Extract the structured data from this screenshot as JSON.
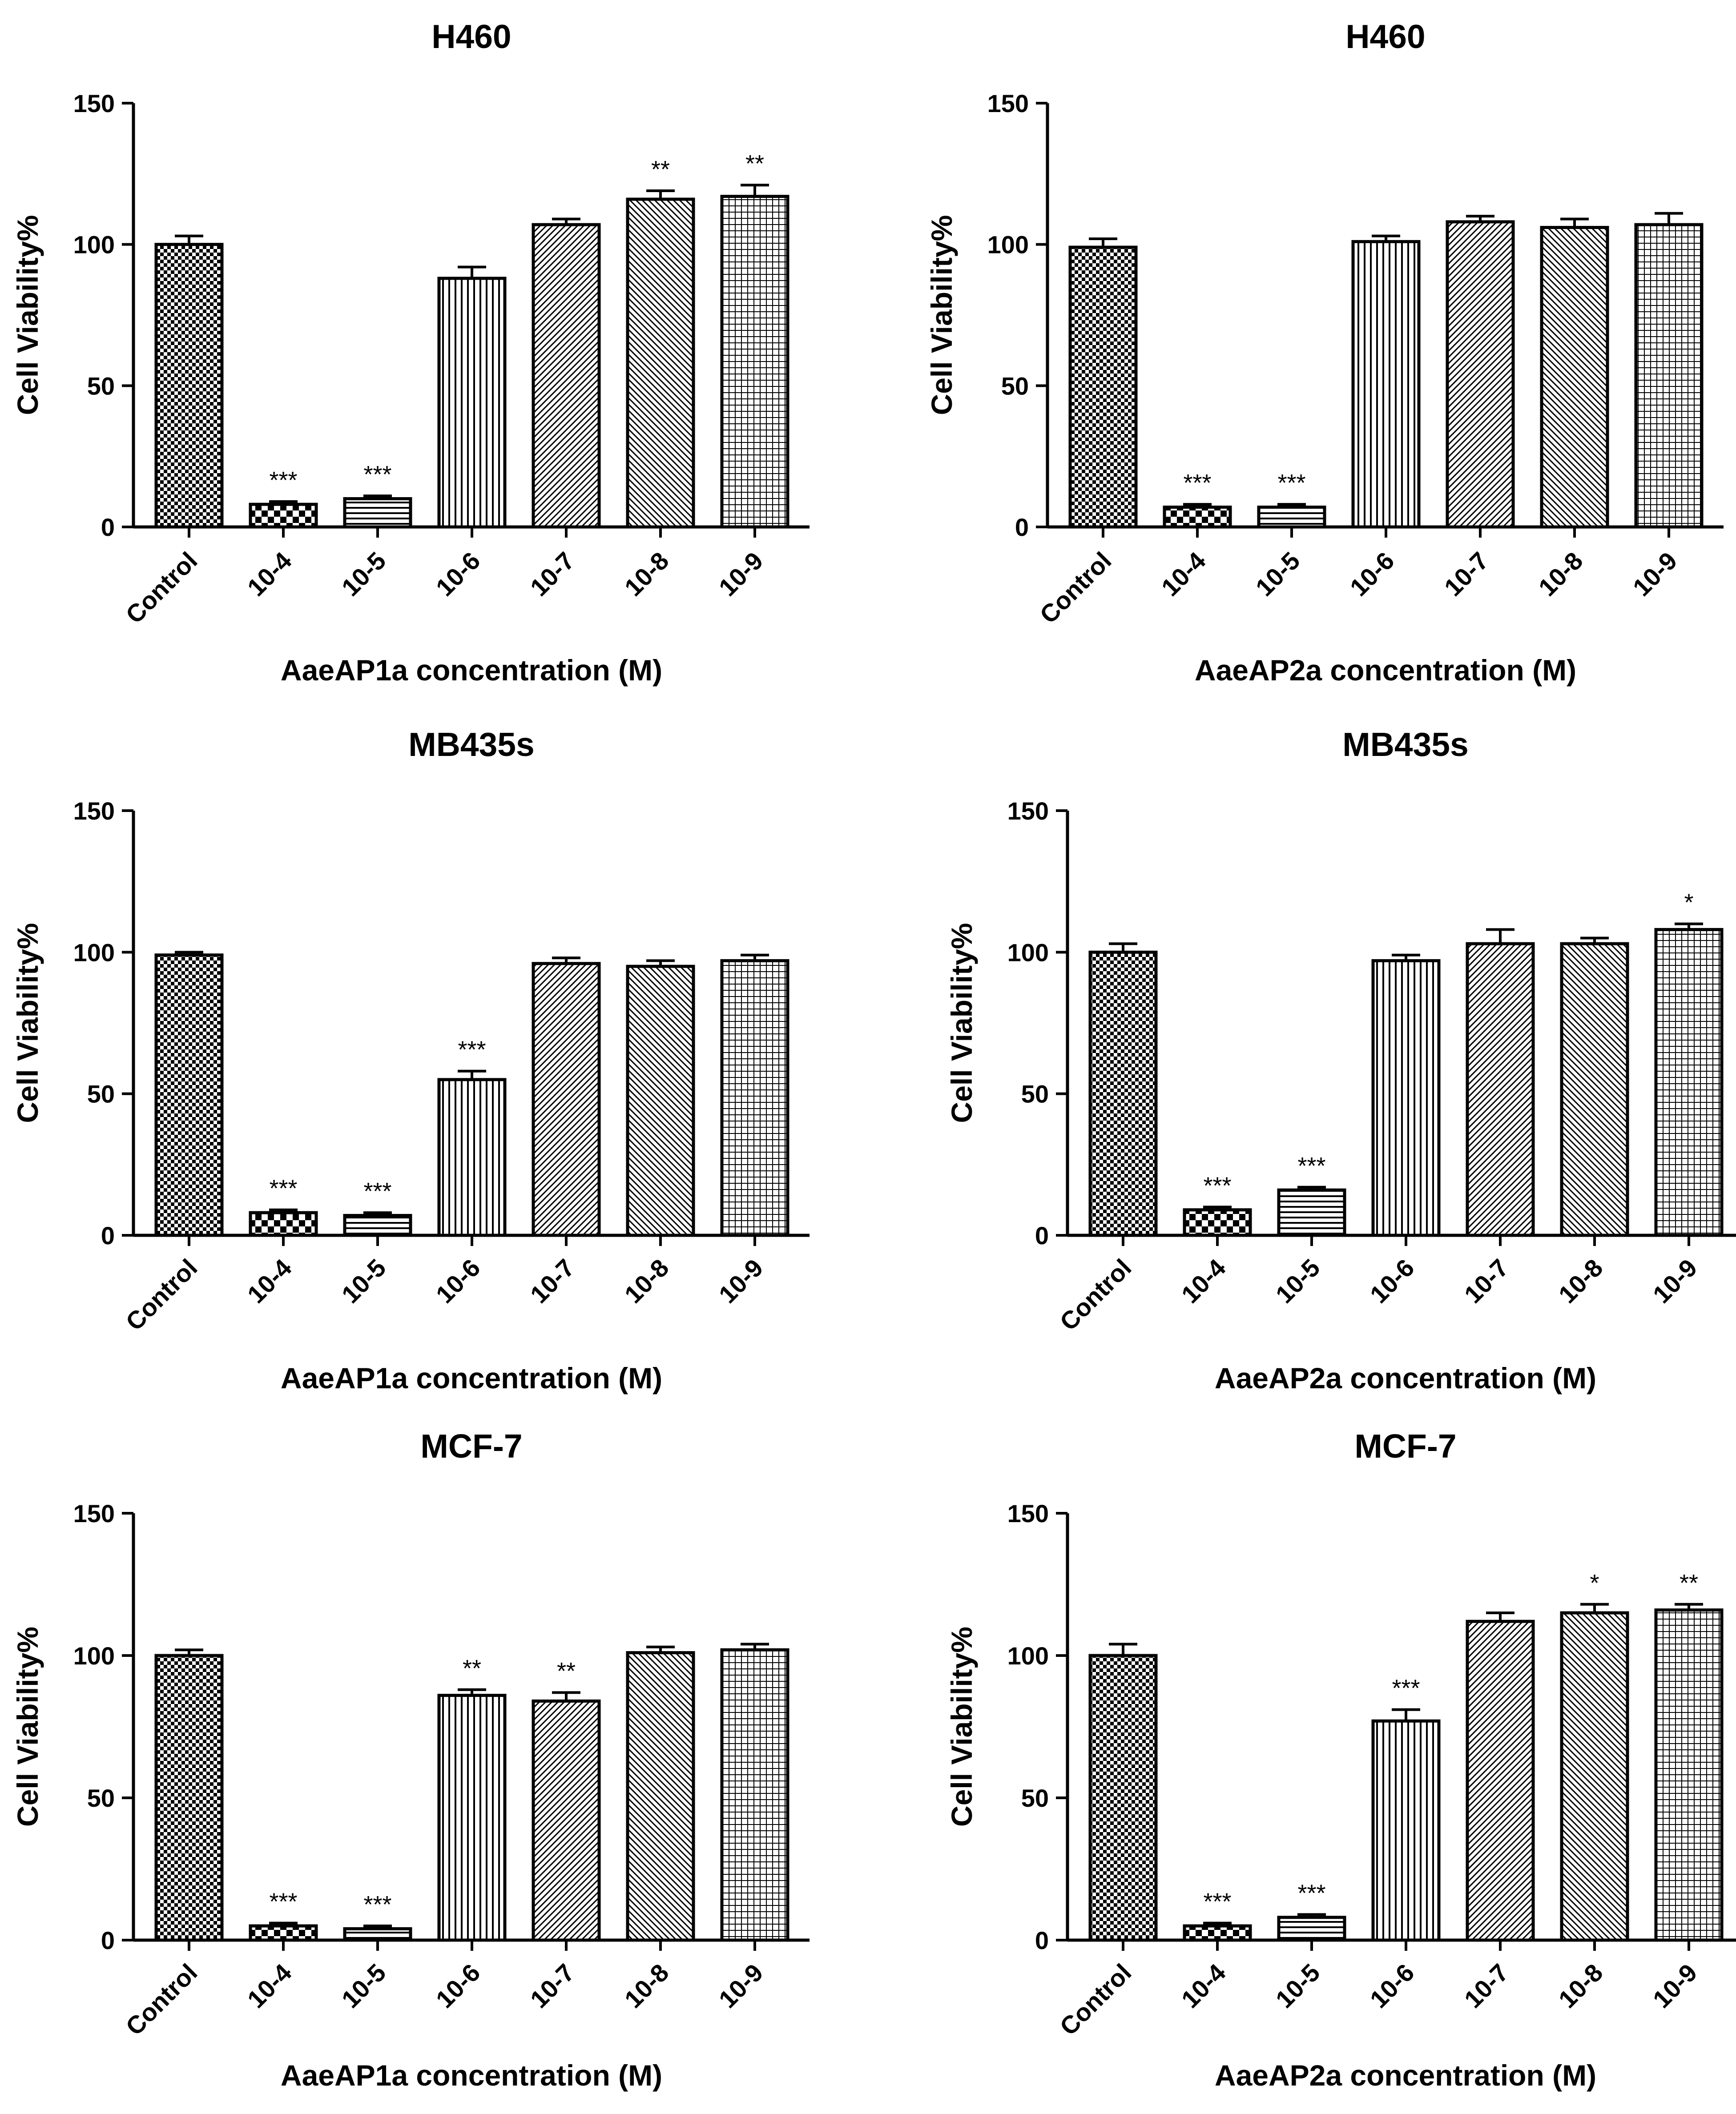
{
  "figure": {
    "ylabel": "Cell Viability%"
  },
  "chart_data": [
    {
      "type": "bar",
      "title": "H460",
      "xlabel": "AaeAP1a concentration (M)",
      "ylabel": "Cell Viability%",
      "ylim": [
        0,
        150
      ],
      "yticks": [
        0,
        50,
        100,
        150
      ],
      "categories": [
        "Control",
        "10-4",
        "10-5",
        "10-6",
        "10-7",
        "10-8",
        "10-9"
      ],
      "values": [
        100,
        8,
        10,
        88,
        107,
        116,
        117
      ],
      "errors": [
        3,
        1,
        1,
        4,
        2,
        3,
        4
      ],
      "significance": [
        "",
        "***",
        "***",
        "",
        "",
        "**",
        "**"
      ]
    },
    {
      "type": "bar",
      "title": "H460",
      "xlabel": "AaeAP2a concentration (M)",
      "ylabel": "Cell Viability%",
      "ylim": [
        0,
        150
      ],
      "yticks": [
        0,
        50,
        100,
        150
      ],
      "categories": [
        "Control",
        "10-4",
        "10-5",
        "10-6",
        "10-7",
        "10-8",
        "10-9"
      ],
      "values": [
        99,
        7,
        7,
        101,
        108,
        106,
        107
      ],
      "errors": [
        3,
        1,
        1,
        2,
        2,
        3,
        4
      ],
      "significance": [
        "",
        "***",
        "***",
        "",
        "",
        "",
        ""
      ]
    },
    {
      "type": "bar",
      "title": "MB435s",
      "xlabel": "AaeAP1a concentration (M)",
      "ylabel": "Cell Viability%",
      "ylim": [
        0,
        150
      ],
      "yticks": [
        0,
        50,
        100,
        150
      ],
      "categories": [
        "Control",
        "10-4",
        "10-5",
        "10-6",
        "10-7",
        "10-8",
        "10-9"
      ],
      "values": [
        99,
        8,
        7,
        55,
        96,
        95,
        97
      ],
      "errors": [
        1,
        1,
        1,
        3,
        2,
        2,
        2
      ],
      "significance": [
        "",
        "***",
        "***",
        "***",
        "",
        "",
        ""
      ]
    },
    {
      "type": "bar",
      "title": "MB435s",
      "xlabel": "AaeAP2a concentration (M)",
      "ylabel": "Cell Viability%",
      "ylim": [
        0,
        150
      ],
      "yticks": [
        0,
        50,
        100,
        150
      ],
      "categories": [
        "Control",
        "10-4",
        "10-5",
        "10-6",
        "10-7",
        "10-8",
        "10-9"
      ],
      "values": [
        100,
        9,
        16,
        97,
        103,
        103,
        108
      ],
      "errors": [
        3,
        1,
        1,
        2,
        5,
        2,
        2
      ],
      "significance": [
        "",
        "***",
        "***",
        "",
        "",
        "",
        "*"
      ]
    },
    {
      "type": "bar",
      "title": "MCF-7",
      "xlabel": "AaeAP1a concentration (M)",
      "ylabel": "Cell Viability%",
      "ylim": [
        0,
        150
      ],
      "yticks": [
        0,
        50,
        100,
        150
      ],
      "categories": [
        "Control",
        "10-4",
        "10-5",
        "10-6",
        "10-7",
        "10-8",
        "10-9"
      ],
      "values": [
        100,
        5,
        4,
        86,
        84,
        101,
        102
      ],
      "errors": [
        2,
        1,
        1,
        2,
        3,
        2,
        2
      ],
      "significance": [
        "",
        "***",
        "***",
        "**",
        "**",
        "",
        ""
      ]
    },
    {
      "type": "bar",
      "title": "MCF-7",
      "xlabel": "AaeAP2a concentration (M)",
      "ylabel": "Cell Viability%",
      "ylim": [
        0,
        150
      ],
      "yticks": [
        0,
        50,
        100,
        150
      ],
      "categories": [
        "Control",
        "10-4",
        "10-5",
        "10-6",
        "10-7",
        "10-8",
        "10-9"
      ],
      "values": [
        100,
        5,
        8,
        77,
        112,
        115,
        116
      ],
      "errors": [
        4,
        1,
        1,
        4,
        3,
        3,
        2
      ],
      "significance": [
        "",
        "***",
        "***",
        "***",
        "",
        "*",
        "**"
      ]
    }
  ]
}
